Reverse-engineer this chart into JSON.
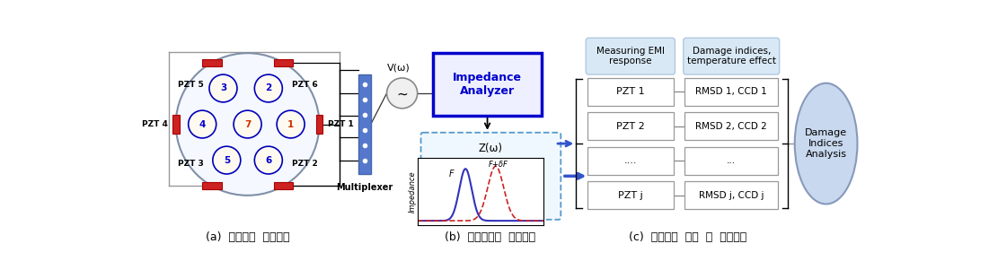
{
  "bg_color": "#ffffff",
  "caption_a": "(a)  멀티센서  네트워킹",
  "caption_b": "(b)  멀티플렉스  신호분석",
  "caption_c": "(c)  임피던스  분석  및  파손감지",
  "fig_width": 11.01,
  "fig_height": 3.01,
  "fig_dpi": 100
}
